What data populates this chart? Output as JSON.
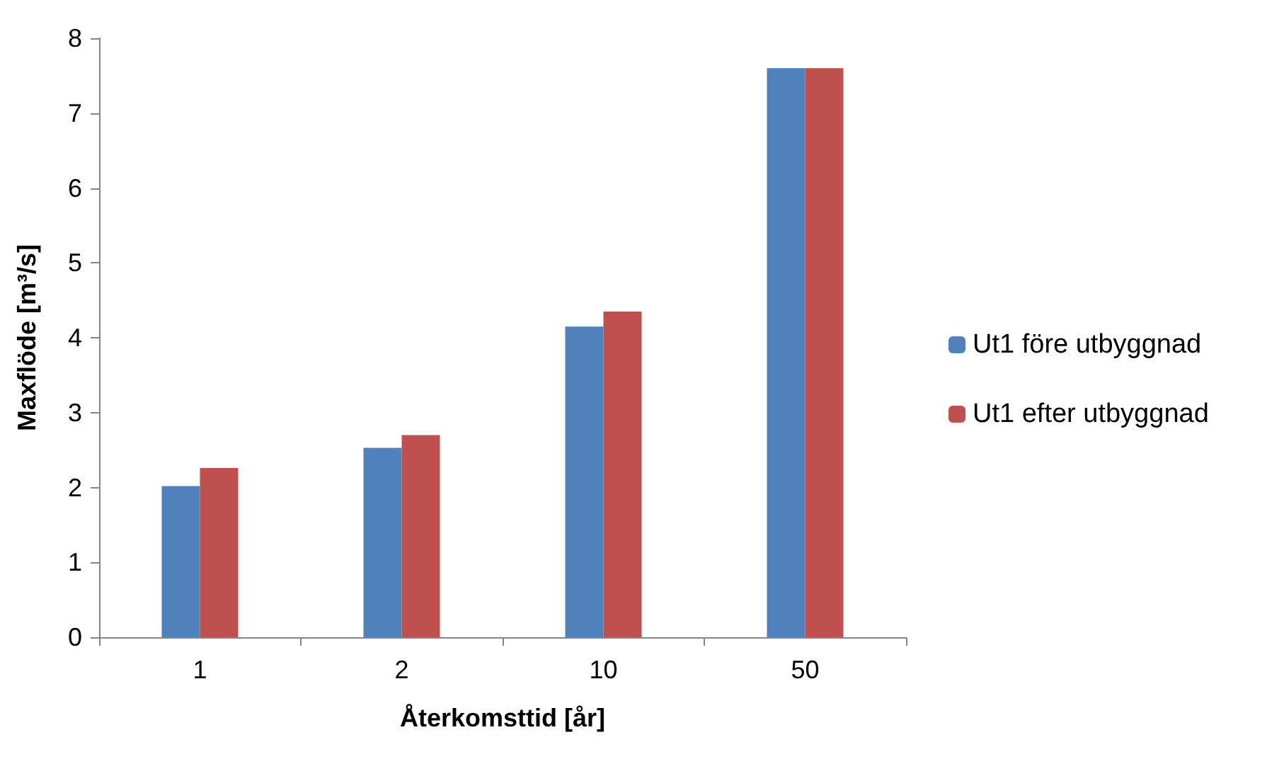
{
  "chart_data": {
    "type": "bar",
    "xlabel": "Återkomsttid [år]",
    "ylabel": "Maxflöde [m³/s]",
    "categories": [
      "1",
      "2",
      "10",
      "50"
    ],
    "series": [
      {
        "name": "Ut1 före utbyggnad",
        "color": "#4f81bd",
        "values": [
          2.02,
          2.53,
          4.15,
          7.6
        ]
      },
      {
        "name": "Ut1 efter utbyggnad",
        "color": "#c0504d",
        "values": [
          2.26,
          2.7,
          4.35,
          7.6
        ]
      }
    ],
    "ylim": [
      0,
      8
    ],
    "yticks": [
      0,
      1,
      2,
      3,
      4,
      5,
      6,
      7,
      8
    ],
    "grid": false,
    "legend": "right"
  }
}
